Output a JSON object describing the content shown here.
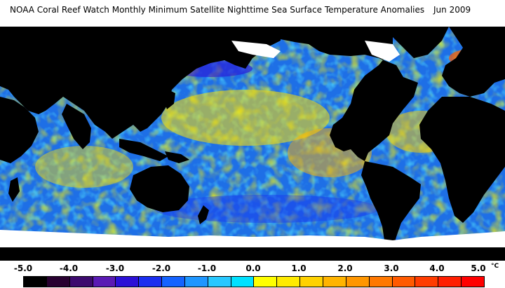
{
  "header": {
    "title": "NOAA Coral Reef Watch Monthly Minimum Satellite Nighttime Sea Surface Temperature Anomalies",
    "date": "Jun 2009"
  },
  "map": {
    "ocean_base_color": "#1e6fe6",
    "land_color": "#000000",
    "ice_color": "#ffffff"
  },
  "legend": {
    "tick_labels": [
      "-5.0",
      "-4.0",
      "-3.0",
      "-2.0",
      "-1.0",
      "0.0",
      "1.0",
      "2.0",
      "3.0",
      "4.0",
      "5.0"
    ],
    "unit": "°C",
    "colors": [
      "#000000",
      "#280030",
      "#3c0a6e",
      "#5a1ab4",
      "#2b10d6",
      "#1a2ef0",
      "#1463ff",
      "#1e96ff",
      "#28c8ff",
      "#00e1ff",
      "#ffff00",
      "#ffeb00",
      "#ffd200",
      "#ffb400",
      "#ff9600",
      "#ff7800",
      "#ff5a00",
      "#ff3c00",
      "#ff1e00",
      "#ff0000"
    ]
  }
}
